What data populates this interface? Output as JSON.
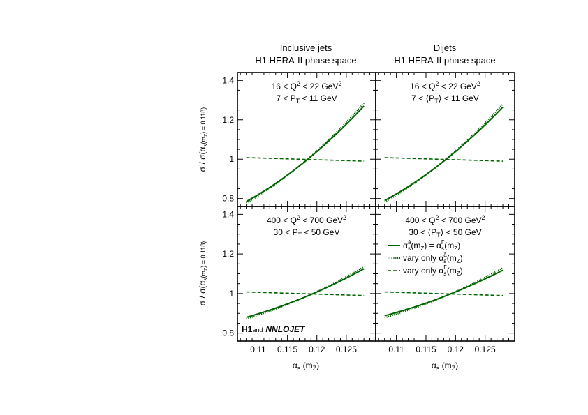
{
  "figure": {
    "col_titles": [
      {
        "line1": "Inclusive jets",
        "line2": "H1 HERA-II phase space"
      },
      {
        "line1": "Dijets",
        "line2": "H1 HERA-II phase space"
      }
    ],
    "ylabel": {
      "main": "σ / σ(α",
      "sub1": "s",
      "mid": "(m",
      "sub2": "Z",
      "end": ") = 0.118)"
    },
    "xlabel": {
      "main": "α",
      "sub1": "s",
      "mid": " (m",
      "sub2": "Z",
      "end": ")"
    },
    "logo": {
      "h1": "H1",
      "and": "and",
      "nnlojet": "NNLOJET"
    },
    "legend": [
      {
        "pre": "α",
        "sub": "s",
        "sup": "â",
        "mid": "(m",
        "sub2": "Z",
        "eq": ") = α",
        "sub3": "s",
        "sup3": "Γ",
        "end": "(m",
        "sub4": "Z",
        "close": ")",
        "style": "solid"
      },
      {
        "pre": "vary only α",
        "sub": "s",
        "sup": "â",
        "mid": "(m",
        "sub2": "Z",
        "close": ")",
        "style": "dotted"
      },
      {
        "pre": "vary only α",
        "sub": "s",
        "sup": "Γ",
        "mid": "(m",
        "sub2": "Z",
        "close": ")",
        "style": "dashed"
      }
    ],
    "color": "#006400"
  },
  "chart_data": [
    {
      "type": "line",
      "panel": "top-left",
      "label_lines": [
        "16 < Q² < 22 GeV²",
        "7 < P_T < 11 GeV"
      ],
      "xlim": [
        0.1065,
        0.13
      ],
      "ylim": [
        0.76,
        1.44
      ],
      "xticks": [
        0.11,
        0.115,
        0.12,
        0.125
      ],
      "yticks": [
        0.8,
        1,
        1.2,
        1.4
      ],
      "x": [
        0.108,
        0.128
      ],
      "series": [
        {
          "style": "solid",
          "values": [
            0.785,
            1.27
          ]
        },
        {
          "style": "dotted",
          "values": [
            0.777,
            1.285
          ]
        },
        {
          "style": "dashed",
          "values": [
            1.008,
            0.99
          ]
        }
      ]
    },
    {
      "type": "line",
      "panel": "top-right",
      "label_lines": [
        "16 < Q² < 22 GeV²",
        "7 < ⟨P_T⟩ < 11 GeV"
      ],
      "xlim": [
        0.1065,
        0.13
      ],
      "ylim": [
        0.76,
        1.44
      ],
      "xticks": [
        0.11,
        0.115,
        0.12,
        0.125
      ],
      "yticks": [
        0.8,
        1,
        1.2,
        1.4
      ],
      "x": [
        0.108,
        0.128
      ],
      "series": [
        {
          "style": "solid",
          "values": [
            0.79,
            1.265
          ]
        },
        {
          "style": "dotted",
          "values": [
            0.782,
            1.28
          ]
        },
        {
          "style": "dashed",
          "values": [
            1.008,
            0.99
          ]
        }
      ]
    },
    {
      "type": "line",
      "panel": "bottom-left",
      "label_lines": [
        "400 < Q² < 700 GeV²",
        "30 < P_T < 50 GeV"
      ],
      "xlim": [
        0.1065,
        0.13
      ],
      "ylim": [
        0.76,
        1.44
      ],
      "xticks": [
        0.11,
        0.115,
        0.12,
        0.125
      ],
      "yticks": [
        0.8,
        1,
        1.2,
        1.4
      ],
      "x": [
        0.108,
        0.128
      ],
      "series": [
        {
          "style": "solid",
          "values": [
            0.88,
            1.125
          ]
        },
        {
          "style": "dotted",
          "values": [
            0.872,
            1.135
          ]
        },
        {
          "style": "dashed",
          "values": [
            1.008,
            0.99
          ]
        }
      ]
    },
    {
      "type": "line",
      "panel": "bottom-right",
      "label_lines": [
        "400 < Q² < 700 GeV²",
        "30 < ⟨P_T⟩ < 50 GeV"
      ],
      "xlim": [
        0.1065,
        0.13
      ],
      "ylim": [
        0.76,
        1.44
      ],
      "xticks": [
        0.11,
        0.115,
        0.12,
        0.125
      ],
      "yticks": [
        0.8,
        1,
        1.2,
        1.4
      ],
      "x": [
        0.108,
        0.128
      ],
      "series": [
        {
          "style": "solid",
          "values": [
            0.888,
            1.118
          ]
        },
        {
          "style": "dotted",
          "values": [
            0.878,
            1.13
          ]
        },
        {
          "style": "dashed",
          "values": [
            1.008,
            0.99
          ]
        }
      ]
    }
  ]
}
